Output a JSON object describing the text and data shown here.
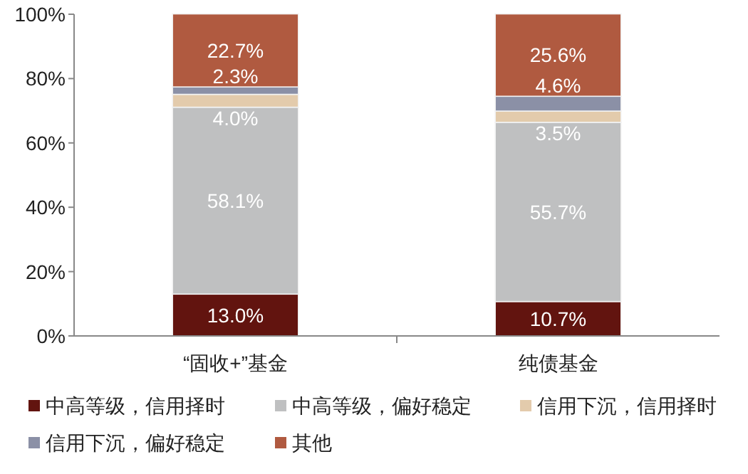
{
  "chart_data": {
    "type": "bar",
    "stacked": true,
    "categories": [
      "“固收+”基金",
      "纯债基金"
    ],
    "series": [
      {
        "name": "中高等级，信用择时",
        "color": "#62140f",
        "values": [
          13.0,
          10.7
        ],
        "value_labels": [
          "13.0%",
          "10.7%"
        ]
      },
      {
        "name": "中高等级，偏好稳定",
        "color": "#bfc0c1",
        "values": [
          58.1,
          55.7
        ],
        "value_labels": [
          "58.1%",
          "55.7%"
        ]
      },
      {
        "name": "信用下沉，信用择时",
        "color": "#e3cbac",
        "values": [
          4.0,
          3.5
        ],
        "value_labels": [
          "4.0%",
          "3.5%"
        ]
      },
      {
        "name": "信用下沉，偏好稳定",
        "color": "#8b90a6",
        "values": [
          2.3,
          4.6
        ],
        "value_labels": [
          "2.3%",
          "4.6%"
        ]
      },
      {
        "name": "其他",
        "color": "#b05a40",
        "values": [
          22.7,
          25.6
        ],
        "value_labels": [
          "22.7%",
          "25.6%"
        ]
      }
    ],
    "ylim": [
      0,
      100
    ],
    "yticks": [
      {
        "value": 0,
        "label": "0%"
      },
      {
        "value": 20,
        "label": "20%"
      },
      {
        "value": 40,
        "label": "40%"
      },
      {
        "value": 60,
        "label": "60%"
      },
      {
        "value": 80,
        "label": "80%"
      },
      {
        "value": 100,
        "label": "100%"
      }
    ],
    "grid": false,
    "legend": "bottom"
  }
}
